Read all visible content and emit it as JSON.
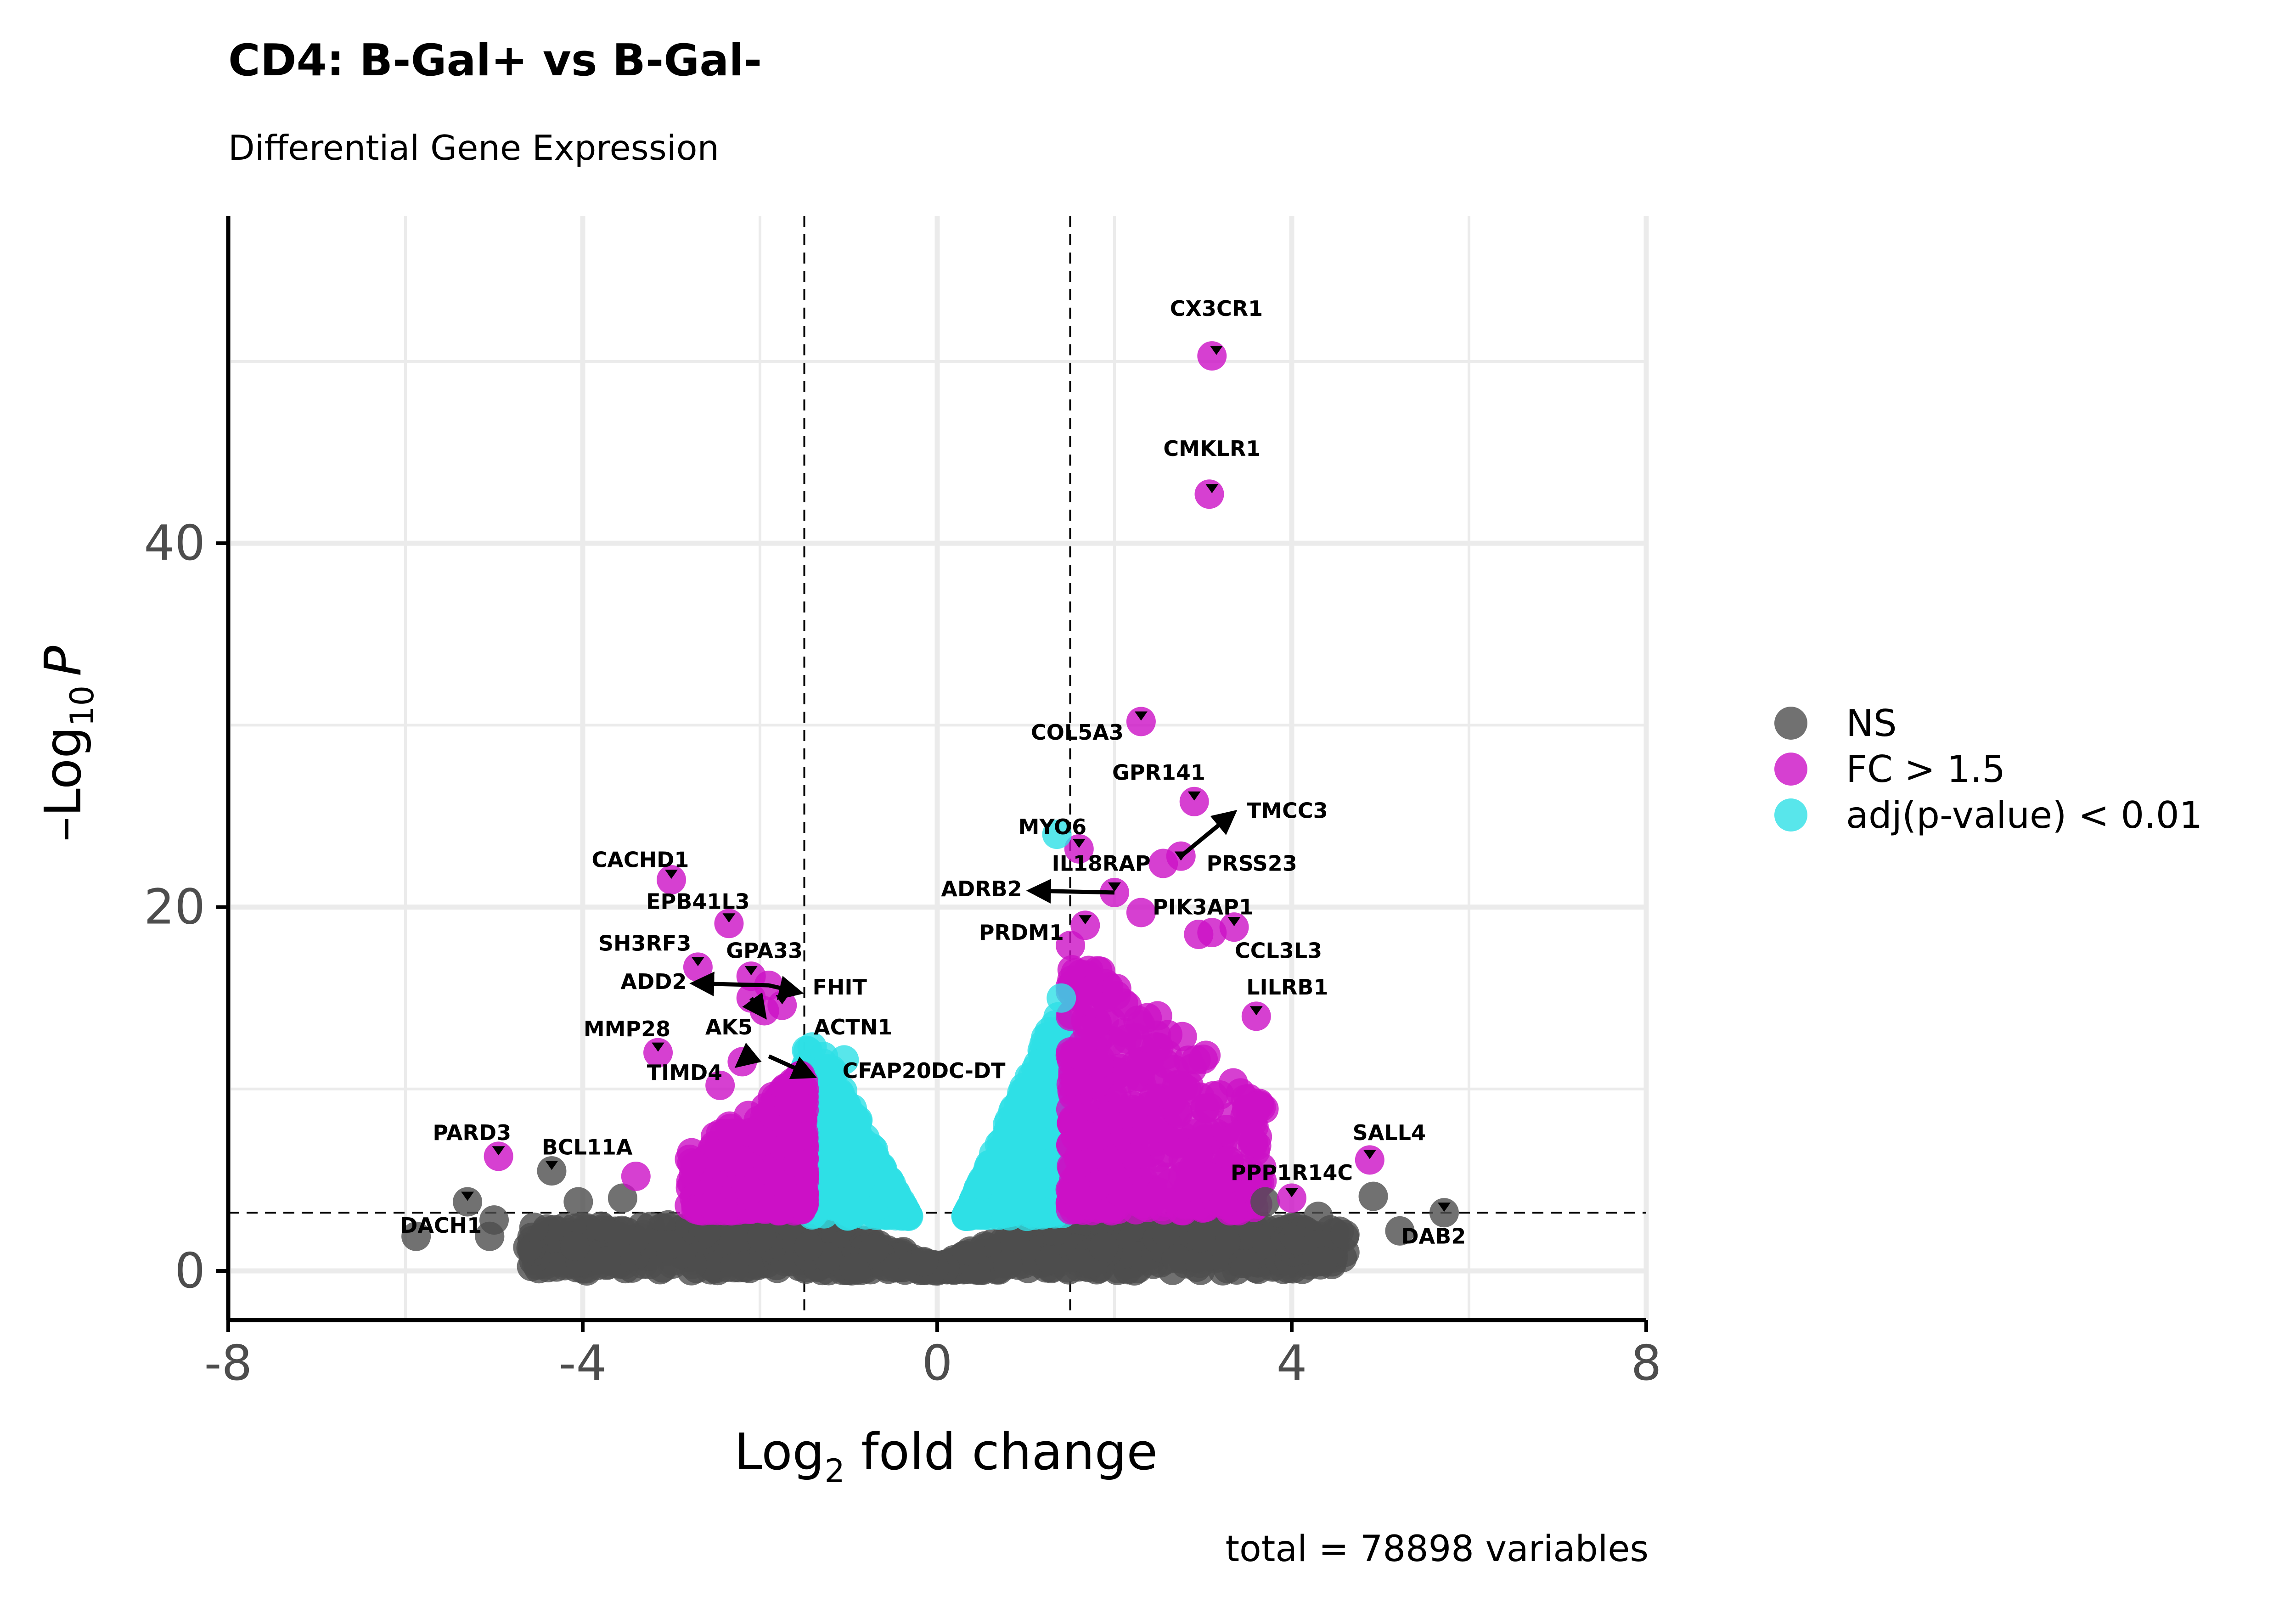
{
  "chart_data": {
    "type": "scatter",
    "title": "CD4: B-Gal+ vs B-Gal-",
    "subtitle": "Differential Gene Expression",
    "xlabel": {
      "base": "Log",
      "sub": "2",
      "rest": " fold change"
    },
    "ylabel": {
      "base": "–Log",
      "sub": "10",
      "rest": "P"
    },
    "caption": "total = 78898 variables",
    "xlim": [
      -8,
      8
    ],
    "ylim": [
      -2.7,
      58
    ],
    "x_ticks": [
      {
        "value": -8,
        "label": "-8"
      },
      {
        "value": -4,
        "label": "-4"
      },
      {
        "value": 0,
        "label": "0"
      },
      {
        "value": 4,
        "label": "4"
      },
      {
        "value": 8,
        "label": "8"
      }
    ],
    "y_ticks": [
      {
        "value": 0,
        "label": "0"
      },
      {
        "value": 20,
        "label": "20"
      },
      {
        "value": 40,
        "label": "40"
      }
    ],
    "grid": true,
    "cutoffs": {
      "fold_change": [
        -1.5,
        1.5
      ],
      "neg_log10_p": 3.2
    },
    "legend": {
      "position": "right",
      "entries": [
        {
          "label": "NS",
          "color": "#4d4d4d"
        },
        {
          "label": "FC > 1.5",
          "color": "#cc10c6"
        },
        {
          "label": "adj(p-value) < 0.01",
          "color": "#2ee0e6"
        }
      ]
    },
    "points": [
      {
        "x": -5.88,
        "y": 1.9,
        "group": "NS"
      },
      {
        "x": -5.3,
        "y": 3.8,
        "group": "NS"
      },
      {
        "x": -5.0,
        "y": 2.8,
        "group": "NS"
      },
      {
        "x": -5.05,
        "y": 1.9,
        "group": "NS"
      },
      {
        "x": -4.62,
        "y": 1.3,
        "group": "NS"
      },
      {
        "x": -4.55,
        "y": 2.4,
        "group": "NS"
      },
      {
        "x": -4.35,
        "y": 5.5,
        "group": "NS"
      },
      {
        "x": -4.05,
        "y": 3.8,
        "group": "NS"
      },
      {
        "x": -3.55,
        "y": 4.0,
        "group": "NS"
      },
      {
        "x": 4.92,
        "y": 4.1,
        "group": "NS"
      },
      {
        "x": 5.22,
        "y": 2.2,
        "group": "NS"
      },
      {
        "x": 5.72,
        "y": 3.2,
        "group": "NS"
      },
      {
        "x": 3.7,
        "y": 3.8,
        "group": "NS"
      },
      {
        "x": 4.3,
        "y": 3.0,
        "group": "NS"
      },
      {
        "x": 4.6,
        "y": 2.0,
        "group": "NS"
      },
      {
        "x": 3.1,
        "y": 50.3,
        "group": "FC"
      },
      {
        "x": 3.07,
        "y": 42.7,
        "group": "FC"
      },
      {
        "x": 2.3,
        "y": 30.2,
        "group": "FC"
      },
      {
        "x": 2.9,
        "y": 25.8,
        "group": "FC"
      },
      {
        "x": 1.6,
        "y": 23.2,
        "group": "FC"
      },
      {
        "x": 2.55,
        "y": 22.4,
        "group": "FC"
      },
      {
        "x": 2.75,
        "y": 22.8,
        "group": "FC"
      },
      {
        "x": 2.0,
        "y": 20.8,
        "group": "FC"
      },
      {
        "x": 2.3,
        "y": 19.7,
        "group": "FC"
      },
      {
        "x": 1.67,
        "y": 19.0,
        "group": "FC"
      },
      {
        "x": 3.35,
        "y": 18.9,
        "group": "FC"
      },
      {
        "x": 2.95,
        "y": 18.5,
        "group": "FC"
      },
      {
        "x": 3.1,
        "y": 18.6,
        "group": "FC"
      },
      {
        "x": 3.6,
        "y": 14.0,
        "group": "FC"
      },
      {
        "x": 4.88,
        "y": 6.1,
        "group": "FC"
      },
      {
        "x": 4.0,
        "y": 4.0,
        "group": "FC"
      },
      {
        "x": -3.0,
        "y": 21.5,
        "group": "FC"
      },
      {
        "x": -2.35,
        "y": 19.1,
        "group": "FC"
      },
      {
        "x": -2.7,
        "y": 16.7,
        "group": "FC"
      },
      {
        "x": -2.1,
        "y": 16.2,
        "group": "FC"
      },
      {
        "x": -1.9,
        "y": 15.7,
        "group": "FC"
      },
      {
        "x": -2.1,
        "y": 15.0,
        "group": "FC"
      },
      {
        "x": -1.75,
        "y": 14.6,
        "group": "FC"
      },
      {
        "x": -1.95,
        "y": 14.3,
        "group": "FC"
      },
      {
        "x": -3.15,
        "y": 12.0,
        "group": "FC"
      },
      {
        "x": -2.2,
        "y": 11.5,
        "group": "FC"
      },
      {
        "x": -4.95,
        "y": 6.3,
        "group": "FC"
      },
      {
        "x": -2.45,
        "y": 10.2,
        "group": "FC"
      },
      {
        "x": -3.4,
        "y": 5.2,
        "group": "FC"
      },
      {
        "x": -1.05,
        "y": 11.6,
        "group": "ADJ"
      },
      {
        "x": 1.35,
        "y": 24.0,
        "group": "ADJ"
      },
      {
        "x": 1.4,
        "y": 15.0,
        "group": "ADJ"
      }
    ],
    "labels": [
      {
        "gene": "CX3CR1",
        "x": 3.15,
        "y": 50.3,
        "lx": 3.15,
        "ly": 52.5,
        "arrow": false
      },
      {
        "gene": "CMKLR1",
        "x": 3.1,
        "y": 42.7,
        "lx": 3.1,
        "ly": 44.8,
        "arrow": false
      },
      {
        "gene": "COL5A3",
        "x": 2.3,
        "y": 30.2,
        "lx": 1.58,
        "ly": 29.2,
        "arrow": false
      },
      {
        "gene": "GPR141",
        "x": 2.9,
        "y": 25.8,
        "lx": 2.5,
        "ly": 27.0,
        "arrow": false
      },
      {
        "gene": "TMCC3",
        "x": 2.75,
        "y": 22.8,
        "lx": 3.95,
        "ly": 24.9,
        "arrow": true,
        "tip": [
          3.35,
          25.2
        ]
      },
      {
        "gene": "MYO6",
        "x": 1.6,
        "y": 23.2,
        "lx": 1.3,
        "ly": 24.0,
        "arrow": false
      },
      {
        "gene": "IL18RAP",
        "x": 2.0,
        "y": 20.8,
        "lx": 1.85,
        "ly": 22.0,
        "arrow": false
      },
      {
        "gene": "PRSS23",
        "x": 2.75,
        "y": 22.5,
        "lx": 3.55,
        "ly": 22.0,
        "arrow": false
      },
      {
        "gene": "ADRB2",
        "x": 2.0,
        "y": 20.8,
        "lx": 0.5,
        "ly": 20.6,
        "arrow": true,
        "tip": [
          1.05,
          20.9
        ]
      },
      {
        "gene": "PIK3AP1",
        "x": 3.35,
        "y": 18.9,
        "lx": 3.0,
        "ly": 19.6,
        "arrow": false
      },
      {
        "gene": "PRDM1",
        "x": 1.67,
        "y": 19.0,
        "lx": 0.95,
        "ly": 18.2,
        "arrow": false
      },
      {
        "gene": "CCL3L3",
        "x": 3.35,
        "y": 18.9,
        "lx": 3.85,
        "ly": 17.2,
        "arrow": false
      },
      {
        "gene": "LILRB1",
        "x": 3.6,
        "y": 14.0,
        "lx": 3.95,
        "ly": 15.2,
        "arrow": false
      },
      {
        "gene": "SALL4",
        "x": 4.88,
        "y": 6.1,
        "lx": 5.1,
        "ly": 7.2,
        "arrow": false
      },
      {
        "gene": "PPP1R14C",
        "x": 4.0,
        "y": 4.0,
        "lx": 4.0,
        "ly": 5.0,
        "arrow": false
      },
      {
        "gene": "DAB2",
        "x": 5.72,
        "y": 3.2,
        "lx": 5.6,
        "ly": 1.5,
        "arrow": false
      },
      {
        "gene": "CACHD1",
        "x": -3.0,
        "y": 21.5,
        "lx": -3.35,
        "ly": 22.2,
        "arrow": false
      },
      {
        "gene": "EPB41L3",
        "x": -2.35,
        "y": 19.1,
        "lx": -2.7,
        "ly": 19.9,
        "arrow": false
      },
      {
        "gene": "SH3RF3",
        "x": -2.7,
        "y": 16.7,
        "lx": -3.3,
        "ly": 17.6,
        "arrow": false
      },
      {
        "gene": "GPA33",
        "x": -2.1,
        "y": 16.2,
        "lx": -1.95,
        "ly": 17.2,
        "arrow": false
      },
      {
        "gene": "ADD2",
        "x": -1.9,
        "y": 15.7,
        "lx": -3.2,
        "ly": 15.5,
        "arrow": true,
        "tip": [
          -2.75,
          15.8
        ]
      },
      {
        "gene": "FHIT",
        "x": -1.9,
        "y": 15.7,
        "lx": -1.1,
        "ly": 15.2,
        "arrow": true,
        "tip": [
          -1.55,
          15.3
        ]
      },
      {
        "gene": "AK5",
        "x": -2.1,
        "y": 15.0,
        "lx": -2.35,
        "ly": 13.0,
        "arrow": true,
        "tip": [
          -1.95,
          14.0
        ]
      },
      {
        "gene": "ACTN1",
        "x": -1.75,
        "y": 14.6,
        "lx": -0.95,
        "ly": 13.0,
        "arrow": false
      },
      {
        "gene": "MMP28",
        "x": -3.15,
        "y": 12.0,
        "lx": -3.5,
        "ly": 12.9,
        "arrow": false
      },
      {
        "gene": "TIMD4",
        "x": -2.2,
        "y": 11.5,
        "lx": -2.85,
        "ly": 10.5,
        "arrow": true,
        "tip": [
          -2.25,
          11.3
        ]
      },
      {
        "gene": "CFAP20DC-DT",
        "x": -1.9,
        "y": 11.6,
        "lx": -0.15,
        "ly": 10.6,
        "arrow": true,
        "tip": [
          -1.4,
          10.7
        ],
        "from": [
          -1.9,
          11.8
        ]
      },
      {
        "gene": "PARD3",
        "x": -4.95,
        "y": 6.3,
        "lx": -5.25,
        "ly": 7.2,
        "arrow": false
      },
      {
        "gene": "BCL11A",
        "x": -4.35,
        "y": 5.5,
        "lx": -3.95,
        "ly": 6.4,
        "arrow": false
      },
      {
        "gene": "DACH1",
        "x": -5.3,
        "y": 3.8,
        "lx": -5.6,
        "ly": 2.1,
        "arrow": false
      }
    ]
  }
}
